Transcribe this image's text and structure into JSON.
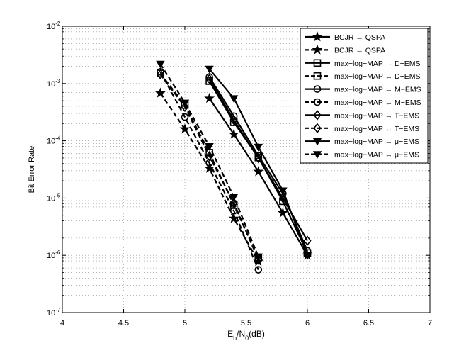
{
  "chart_data": {
    "type": "line",
    "xlabel_main": "E",
    "xlabel_sub1": "b",
    "xlabel_mid": "/N",
    "xlabel_sub2": "0",
    "xlabel_tail": "(dB)",
    "ylabel": "Bit Error Rate",
    "xlim": [
      4,
      7
    ],
    "ylim": [
      1e-07,
      0.01
    ],
    "yscale": "log",
    "grid": true,
    "legend_position": "top-right",
    "x_ticks": [
      "4",
      "4.5",
      "5",
      "5.5",
      "6",
      "6.5",
      "7"
    ],
    "y_ticks": [
      {
        "base": "10",
        "exp": "-7"
      },
      {
        "base": "10",
        "exp": "-6"
      },
      {
        "base": "10",
        "exp": "-5"
      },
      {
        "base": "10",
        "exp": "-4"
      },
      {
        "base": "10",
        "exp": "-3"
      },
      {
        "base": "10",
        "exp": "-2"
      }
    ],
    "series": [
      {
        "name": "BCJR → QSPA",
        "dash": false,
        "marker": "star",
        "x": [
          5.2,
          5.4,
          5.6,
          5.8,
          6.0
        ],
        "y": [
          0.00055,
          0.00013,
          2.9e-05,
          5.5e-06,
          1e-06
        ]
      },
      {
        "name": "BCJR ↔ QSPA",
        "dash": true,
        "marker": "star",
        "x": [
          4.8,
          5.0,
          5.2,
          5.4,
          5.6
        ],
        "y": [
          0.00068,
          0.00016,
          3.3e-05,
          4.4e-06,
          7.8e-07
        ]
      },
      {
        "name": "max−log−MAP → D−EMS",
        "dash": false,
        "marker": "square",
        "x": [
          5.2,
          5.4,
          5.6,
          5.8,
          6.0
        ],
        "y": [
          0.0011,
          0.00021,
          5.1e-05,
          8.8e-06,
          1.1e-06
        ]
      },
      {
        "name": "max−log−MAP ↔ D−EMS",
        "dash": true,
        "marker": "square",
        "x": [
          4.8,
          5.0,
          5.2,
          5.4,
          5.6
        ],
        "y": [
          0.0015,
          0.00042,
          6.2e-05,
          7.5e-06,
          9.2e-07
        ]
      },
      {
        "name": "max−log−MAP → M−EMS",
        "dash": false,
        "marker": "circle",
        "x": [
          5.2,
          5.4,
          5.6,
          5.8,
          6.0
        ],
        "y": [
          0.0013,
          0.00027,
          5.5e-05,
          1.2e-05,
          1.2e-06
        ]
      },
      {
        "name": "max−log−MAP ↔ M−EMS",
        "dash": true,
        "marker": "circle",
        "x": [
          4.8,
          5.0,
          5.2,
          5.4,
          5.6
        ],
        "y": [
          0.0016,
          0.00026,
          4.1e-05,
          6e-06,
          5.6e-07
        ]
      },
      {
        "name": "max−log−MAP → T−EMS",
        "dash": false,
        "marker": "diamond",
        "x": [
          5.2,
          5.4,
          5.6,
          5.8,
          6.0
        ],
        "y": [
          0.0012,
          0.00023,
          5e-05,
          1e-05,
          1.8e-06
        ]
      },
      {
        "name": "max−log−MAP ↔ T−EMS",
        "dash": true,
        "marker": "diamond",
        "x": [
          4.8,
          5.0,
          5.2,
          5.4,
          5.6
        ],
        "y": [
          0.00145,
          0.00039,
          5.4e-05,
          8.2e-06,
          8.4e-07
        ]
      },
      {
        "name": "max−log−MAP → μ−EMS",
        "dash": false,
        "marker": "triangle-down",
        "x": [
          5.2,
          5.4,
          5.6,
          5.8,
          6.0
        ],
        "y": [
          0.0018,
          0.00055,
          7.8e-05,
          1.35e-05,
          1e-06
        ]
      },
      {
        "name": "max−log−MAP ↔ μ−EMS",
        "dash": true,
        "marker": "triangle-down",
        "x": [
          4.8,
          5.0,
          5.2,
          5.4,
          5.6
        ],
        "y": [
          0.0022,
          0.00046,
          8e-05,
          1.05e-05,
          9.5e-07
        ]
      }
    ]
  }
}
